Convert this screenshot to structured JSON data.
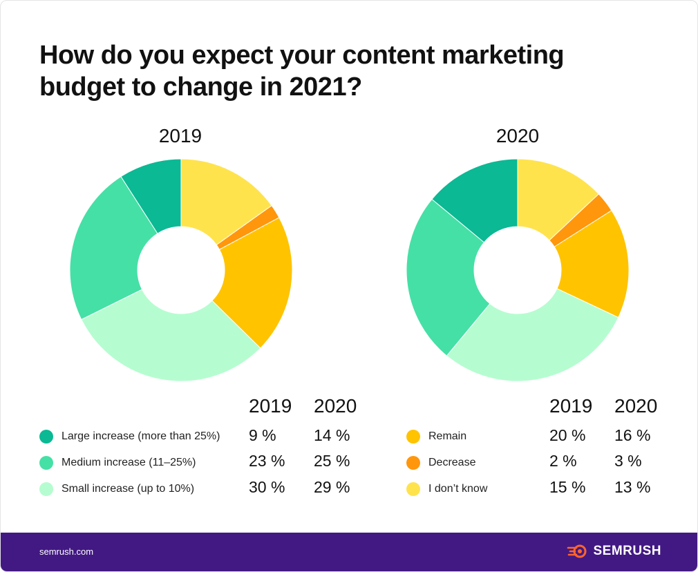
{
  "title": "How do you expect your content marketing budget to change in 2021?",
  "chart_data": {
    "type": "donut",
    "charts": [
      {
        "year": "2019",
        "values": [
          9,
          23,
          30,
          20,
          2,
          15
        ]
      },
      {
        "year": "2020",
        "values": [
          14,
          25,
          29,
          16,
          3,
          13
        ]
      }
    ],
    "categories": [
      "Large increase (more than 25%)",
      "Medium increase (11–25%)",
      "Small increase (up to 10%)",
      "Remain",
      "Decrease",
      "I don't know"
    ],
    "colors": [
      "#0bb994",
      "#45e0a6",
      "#b5fdd0",
      "#ffc300",
      "#ff960c",
      "#ffe34d"
    ]
  },
  "legend": {
    "year_headers": [
      "2019",
      "2020"
    ],
    "left": [
      {
        "label": "Large increase (more than 25%)",
        "v2019": "9 %",
        "v2020": "14 %",
        "color": "#0bb994"
      },
      {
        "label": "Medium increase (11–25%)",
        "v2019": "23 %",
        "v2020": "25 %",
        "color": "#45e0a6"
      },
      {
        "label": "Small increase (up to 10%)",
        "v2019": "30 %",
        "v2020": "29 %",
        "color": "#b5fdd0"
      }
    ],
    "right": [
      {
        "label": "Remain",
        "v2019": "20 %",
        "v2020": "16 %",
        "color": "#ffc300"
      },
      {
        "label": "Decrease",
        "v2019": "2 %",
        "v2020": "3 %",
        "color": "#ff960c"
      },
      {
        "label": "I don’t know",
        "v2019": "15 %",
        "v2020": "13 %",
        "color": "#ffe34d"
      }
    ]
  },
  "footer": {
    "site": "semrush.com",
    "brand": "SEMRUSH"
  }
}
